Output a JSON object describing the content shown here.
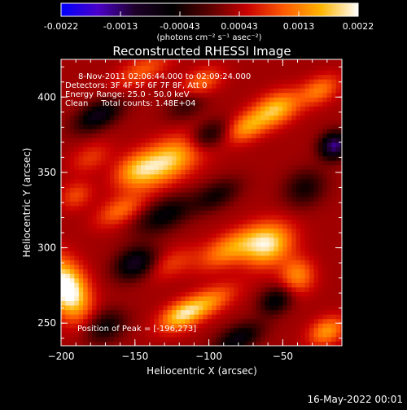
{
  "colorbar": {
    "tick_labels": [
      "-0.0022",
      "-0.0013",
      "-0.00043",
      "0.00043",
      "0.0013",
      "0.0022"
    ],
    "unit": "(photons cm⁻² s⁻¹ asec⁻²)",
    "colors": [
      "#0000ff",
      "#4b00c8",
      "#1e0028",
      "#000000",
      "#5a0000",
      "#c80000",
      "#ff5a00",
      "#ffb400",
      "#ffffff"
    ]
  },
  "footer": {
    "timestamp": "16-May-2022 00:01"
  },
  "chart_data": {
    "type": "heatmap",
    "title": "Reconstructed RHESSI Image",
    "xlabel": "Heliocentric X (arcsec)",
    "ylabel": "Heliocentric Y (arcsec)",
    "xlim": [
      -200,
      -10
    ],
    "ylim": [
      235,
      425
    ],
    "x_ticks": [
      -200,
      -150,
      -100,
      -50
    ],
    "y_ticks": [
      250,
      300,
      350,
      400
    ],
    "x_tick_labels": [
      "−200",
      "−150",
      "−100",
      "−50"
    ],
    "y_tick_labels": [
      "250",
      "300",
      "350",
      "400"
    ],
    "value_range": [
      -0.0022,
      0.0022
    ],
    "annotations": [
      "8-Nov-2011 02:06:44.000 to 02:09:24.000",
      "Detectors: 3F 4F 5F 6F 7F 8F, Att 0",
      "Energy Range: 25.0 - 50.0 keV",
      "Clean     Total counts: 1.48E+04"
    ],
    "peak_label": "Position of Peak = [-196,273]",
    "peak": [
      -196,
      273
    ],
    "sources": [
      {
        "x": -196,
        "y": 273,
        "sx": 9,
        "sy": 14,
        "amp": 0.0022
      },
      {
        "x": -160,
        "y": 325,
        "sx": 12,
        "sy": 6,
        "amp": 0.0008
      },
      {
        "x": -130,
        "y": 357,
        "sx": 18,
        "sy": 9,
        "amp": 0.0016
      },
      {
        "x": -150,
        "y": 352,
        "sx": 10,
        "sy": 7,
        "amp": 0.0007
      },
      {
        "x": -85,
        "y": 300,
        "sx": 16,
        "sy": 7,
        "amp": 0.0011
      },
      {
        "x": -60,
        "y": 302,
        "sx": 12,
        "sy": 9,
        "amp": 0.0016
      },
      {
        "x": -40,
        "y": 282,
        "sx": 8,
        "sy": 8,
        "amp": 0.001
      },
      {
        "x": -105,
        "y": 262,
        "sx": 16,
        "sy": 6,
        "amp": 0.0012
      },
      {
        "x": -120,
        "y": 255,
        "sx": 10,
        "sy": 6,
        "amp": 0.0009
      },
      {
        "x": -55,
        "y": 392,
        "sx": 12,
        "sy": 7,
        "amp": 0.0014
      },
      {
        "x": -75,
        "y": 380,
        "sx": 10,
        "sy": 6,
        "amp": 0.001
      },
      {
        "x": -25,
        "y": 405,
        "sx": 10,
        "sy": 6,
        "amp": 0.0009
      },
      {
        "x": -20,
        "y": 245,
        "sx": 9,
        "sy": 6,
        "amp": 0.0011
      },
      {
        "x": -190,
        "y": 335,
        "sx": 8,
        "sy": 6,
        "amp": 0.0006
      },
      {
        "x": -145,
        "y": 418,
        "sx": 14,
        "sy": 6,
        "amp": 0.0007
      },
      {
        "x": -105,
        "y": 410,
        "sx": 10,
        "sy": 6,
        "amp": 0.0008
      },
      {
        "x": -125,
        "y": 290,
        "sx": 12,
        "sy": 6,
        "amp": 0.0005
      },
      {
        "x": -175,
        "y": 388,
        "sx": 12,
        "sy": 6,
        "amp": -0.0012
      },
      {
        "x": -130,
        "y": 322,
        "sx": 14,
        "sy": 7,
        "amp": -0.001
      },
      {
        "x": -150,
        "y": 290,
        "sx": 10,
        "sy": 7,
        "amp": -0.0013
      },
      {
        "x": -95,
        "y": 335,
        "sx": 12,
        "sy": 6,
        "amp": -0.0008
      },
      {
        "x": -15,
        "y": 368,
        "sx": 7,
        "sy": 6,
        "amp": -0.0018
      },
      {
        "x": -80,
        "y": 240,
        "sx": 12,
        "sy": 6,
        "amp": -0.0011
      },
      {
        "x": -170,
        "y": 248,
        "sx": 10,
        "sy": 7,
        "amp": -0.0009
      },
      {
        "x": -100,
        "y": 375,
        "sx": 10,
        "sy": 6,
        "amp": -0.0009
      },
      {
        "x": -55,
        "y": 265,
        "sx": 8,
        "sy": 6,
        "amp": -0.001
      },
      {
        "x": -35,
        "y": 340,
        "sx": 10,
        "sy": 8,
        "amp": -0.0008
      },
      {
        "x": -180,
        "y": 360,
        "sx": 10,
        "sy": 6,
        "amp": 0.0005
      },
      {
        "x": -115,
        "y": 395,
        "sx": 10,
        "sy": 6,
        "amp": -0.0006
      }
    ]
  }
}
